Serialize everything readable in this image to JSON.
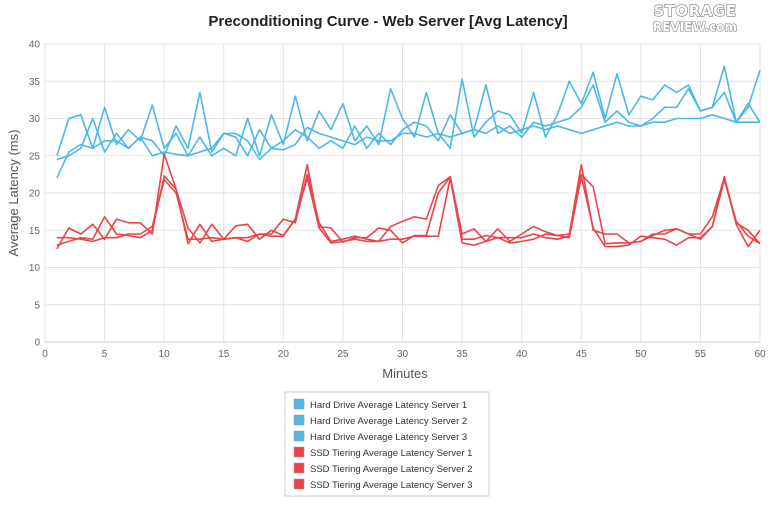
{
  "brand": {
    "logo_line1": "STORAGE",
    "logo_line2": "REVIEW.com"
  },
  "colors": {
    "hdd": "#4cb8e8",
    "ssd": "#e8454a",
    "grid": "#e3e3e3",
    "axis": "#cccccc"
  },
  "chart_data": {
    "type": "line",
    "title": "Preconditioning Curve - Web Server [Avg Latency]",
    "xlabel": "Minutes",
    "ylabel": "Average Latency (ms)",
    "xlim": [
      0,
      60
    ],
    "ylim": [
      0,
      40
    ],
    "xticks": [
      0,
      5,
      10,
      15,
      20,
      25,
      30,
      35,
      40,
      45,
      50,
      55,
      60
    ],
    "yticks": [
      0,
      5,
      10,
      15,
      20,
      25,
      30,
      35,
      40
    ],
    "grid": true,
    "legend_position": "bottom-center",
    "x": [
      1,
      2,
      3,
      4,
      5,
      6,
      7,
      8,
      9,
      10,
      11,
      12,
      13,
      14,
      15,
      16,
      17,
      18,
      19,
      20,
      21,
      22,
      23,
      24,
      25,
      26,
      27,
      28,
      29,
      30,
      31,
      32,
      33,
      34,
      35,
      36,
      37,
      38,
      39,
      40,
      41,
      42,
      43,
      44,
      45,
      46,
      47,
      48,
      49,
      50,
      51,
      52,
      53,
      54,
      55,
      56,
      57,
      58,
      59,
      60
    ],
    "series": [
      {
        "name": "Hard Drive Average Latency Server 1",
        "group": "hdd",
        "values": [
          22,
          25.5,
          26.5,
          26,
          27,
          27,
          26,
          27.5,
          25,
          25.5,
          25.2,
          25,
          25.5,
          26,
          28,
          28,
          27,
          24.5,
          26,
          25.8,
          26.5,
          28.8,
          28,
          27.5,
          27,
          26.5,
          27.5,
          27,
          27,
          28,
          28,
          27.5,
          28,
          27.5,
          28,
          28.5,
          28,
          29,
          28,
          28.5,
          29,
          28.5,
          29,
          28.5,
          28,
          28.5,
          29,
          29.5,
          29,
          29,
          29.5,
          29.5,
          30,
          30,
          30,
          30.5,
          30,
          29.5,
          29.5,
          29.5
        ]
      },
      {
        "name": "Hard Drive Average Latency Server 2",
        "group": "hdd",
        "values": [
          24.5,
          25,
          26,
          30,
          25.5,
          28,
          26,
          27.5,
          27,
          25,
          29,
          26,
          33.5,
          25.5,
          28,
          27.5,
          25,
          28.5,
          26,
          27,
          28.5,
          27.5,
          26,
          27,
          26,
          29,
          26,
          28,
          26.5,
          28.5,
          29.5,
          29,
          27,
          30.5,
          28,
          28.5,
          34.5,
          28,
          29,
          27.5,
          29.5,
          29,
          29.5,
          30,
          31.5,
          34.5,
          29.5,
          31,
          29.5,
          29,
          30,
          31.5,
          31.5,
          34,
          31,
          31.5,
          33.5,
          29.5,
          32,
          29.5
        ]
      },
      {
        "name": "Hard Drive Average Latency Server 3",
        "group": "hdd",
        "values": [
          25,
          30,
          30.5,
          26,
          31.5,
          26.5,
          28.5,
          27,
          31.8,
          26,
          28,
          25,
          27.5,
          25,
          26,
          25,
          30,
          25,
          30.5,
          26.5,
          33,
          27,
          31,
          28.5,
          32,
          27,
          29,
          26.5,
          34,
          30,
          27.5,
          33.5,
          28,
          26,
          35.3,
          27.5,
          29.5,
          31,
          30.5,
          28,
          33.5,
          27.5,
          30.5,
          35,
          32,
          36.2,
          30,
          36,
          30.5,
          33,
          32.5,
          34.5,
          33.5,
          34.5,
          31,
          31.5,
          37,
          29.5,
          31.5,
          36.5
        ]
      },
      {
        "name": "SSD Tiering Average Latency Server 1",
        "group": "ssd",
        "values": [
          12.5,
          15.3,
          14.5,
          15.8,
          13.8,
          16.5,
          16,
          16,
          14.5,
          25.2,
          20.5,
          15.3,
          13.3,
          15.8,
          13.8,
          15.6,
          15.8,
          13.8,
          15,
          14.3,
          16.5,
          23.8,
          15.5,
          15.3,
          13.4,
          14,
          14,
          15.3,
          15,
          13.3,
          14.3,
          14.3,
          20,
          22.2,
          14.5,
          15.2,
          13.5,
          15.2,
          13.5,
          14.5,
          15.5,
          14.8,
          14.3,
          14.5,
          23.8,
          15,
          14.5,
          14.5,
          13.3,
          13.5,
          14.5,
          14.5,
          15.2,
          14.5,
          14.5,
          16.8,
          22,
          16.2,
          14.2,
          13.2
        ]
      },
      {
        "name": "SSD Tiering Average Latency Server 2",
        "group": "ssd",
        "values": [
          14,
          14,
          13.8,
          13.5,
          14,
          14,
          14.5,
          14.5,
          15.5,
          21.8,
          20,
          13.8,
          13.8,
          14,
          13.8,
          14,
          14,
          14.5,
          14.5,
          16.5,
          16,
          22.5,
          16,
          13.5,
          13.8,
          14.2,
          13.8,
          13.5,
          15.5,
          16.2,
          16.8,
          16.5,
          21,
          22.2,
          13.8,
          13.8,
          14.3,
          14,
          14,
          14,
          14.5,
          14,
          13.8,
          14.2,
          22.5,
          20.8,
          13.2,
          13.3,
          13.3,
          13.5,
          14.3,
          15,
          15.2,
          14.5,
          13.8,
          15.5,
          21.8,
          16,
          15,
          13.2
        ]
      },
      {
        "name": "SSD Tiering Average Latency Server 3",
        "group": "ssd",
        "values": [
          13,
          13.5,
          14,
          13.8,
          16.8,
          14.5,
          14.3,
          14,
          15,
          22.3,
          20.5,
          13.2,
          15.8,
          13.5,
          13.8,
          14,
          13.5,
          14.5,
          14.2,
          14.2,
          16.5,
          22,
          15.3,
          13.3,
          13.5,
          13.8,
          13.5,
          13.5,
          13.8,
          13.8,
          14.2,
          14.2,
          14.2,
          22,
          13.3,
          13,
          13.5,
          14,
          13.3,
          13.5,
          13.8,
          14.5,
          14.3,
          14,
          22.2,
          15.3,
          12.8,
          12.8,
          13,
          14.2,
          14,
          13.8,
          13,
          14,
          14,
          15.5,
          22.2,
          15.8,
          12.8,
          15
        ]
      }
    ]
  }
}
